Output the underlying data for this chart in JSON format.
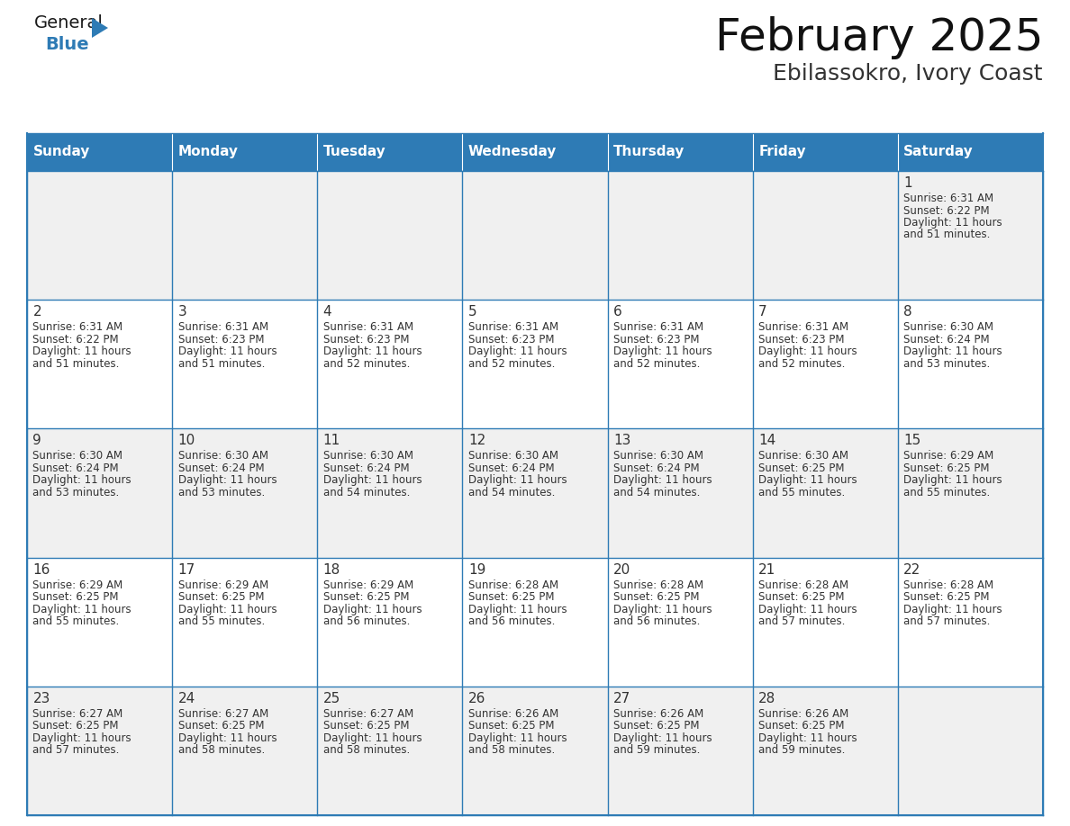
{
  "title": "February 2025",
  "subtitle": "Ebilassokro, Ivory Coast",
  "header_color": "#2E7BB5",
  "header_text_color": "#FFFFFF",
  "cell_bg_white": "#FFFFFF",
  "cell_bg_gray": "#F0F0F0",
  "border_color": "#2E7BB5",
  "border_thin_color": "#CCCCCC",
  "text_color": "#333333",
  "day_names": [
    "Sunday",
    "Monday",
    "Tuesday",
    "Wednesday",
    "Thursday",
    "Friday",
    "Saturday"
  ],
  "logo_general_color": "#1a1a1a",
  "logo_blue_color": "#2E7BB5",
  "days": [
    {
      "date": 1,
      "col": 6,
      "row": 0,
      "sunrise": "6:31 AM",
      "sunset": "6:22 PM",
      "daylight_line1": "Daylight: 11 hours",
      "daylight_line2": "and 51 minutes."
    },
    {
      "date": 2,
      "col": 0,
      "row": 1,
      "sunrise": "6:31 AM",
      "sunset": "6:22 PM",
      "daylight_line1": "Daylight: 11 hours",
      "daylight_line2": "and 51 minutes."
    },
    {
      "date": 3,
      "col": 1,
      "row": 1,
      "sunrise": "6:31 AM",
      "sunset": "6:23 PM",
      "daylight_line1": "Daylight: 11 hours",
      "daylight_line2": "and 51 minutes."
    },
    {
      "date": 4,
      "col": 2,
      "row": 1,
      "sunrise": "6:31 AM",
      "sunset": "6:23 PM",
      "daylight_line1": "Daylight: 11 hours",
      "daylight_line2": "and 52 minutes."
    },
    {
      "date": 5,
      "col": 3,
      "row": 1,
      "sunrise": "6:31 AM",
      "sunset": "6:23 PM",
      "daylight_line1": "Daylight: 11 hours",
      "daylight_line2": "and 52 minutes."
    },
    {
      "date": 6,
      "col": 4,
      "row": 1,
      "sunrise": "6:31 AM",
      "sunset": "6:23 PM",
      "daylight_line1": "Daylight: 11 hours",
      "daylight_line2": "and 52 minutes."
    },
    {
      "date": 7,
      "col": 5,
      "row": 1,
      "sunrise": "6:31 AM",
      "sunset": "6:23 PM",
      "daylight_line1": "Daylight: 11 hours",
      "daylight_line2": "and 52 minutes."
    },
    {
      "date": 8,
      "col": 6,
      "row": 1,
      "sunrise": "6:30 AM",
      "sunset": "6:24 PM",
      "daylight_line1": "Daylight: 11 hours",
      "daylight_line2": "and 53 minutes."
    },
    {
      "date": 9,
      "col": 0,
      "row": 2,
      "sunrise": "6:30 AM",
      "sunset": "6:24 PM",
      "daylight_line1": "Daylight: 11 hours",
      "daylight_line2": "and 53 minutes."
    },
    {
      "date": 10,
      "col": 1,
      "row": 2,
      "sunrise": "6:30 AM",
      "sunset": "6:24 PM",
      "daylight_line1": "Daylight: 11 hours",
      "daylight_line2": "and 53 minutes."
    },
    {
      "date": 11,
      "col": 2,
      "row": 2,
      "sunrise": "6:30 AM",
      "sunset": "6:24 PM",
      "daylight_line1": "Daylight: 11 hours",
      "daylight_line2": "and 54 minutes."
    },
    {
      "date": 12,
      "col": 3,
      "row": 2,
      "sunrise": "6:30 AM",
      "sunset": "6:24 PM",
      "daylight_line1": "Daylight: 11 hours",
      "daylight_line2": "and 54 minutes."
    },
    {
      "date": 13,
      "col": 4,
      "row": 2,
      "sunrise": "6:30 AM",
      "sunset": "6:24 PM",
      "daylight_line1": "Daylight: 11 hours",
      "daylight_line2": "and 54 minutes."
    },
    {
      "date": 14,
      "col": 5,
      "row": 2,
      "sunrise": "6:30 AM",
      "sunset": "6:25 PM",
      "daylight_line1": "Daylight: 11 hours",
      "daylight_line2": "and 55 minutes."
    },
    {
      "date": 15,
      "col": 6,
      "row": 2,
      "sunrise": "6:29 AM",
      "sunset": "6:25 PM",
      "daylight_line1": "Daylight: 11 hours",
      "daylight_line2": "and 55 minutes."
    },
    {
      "date": 16,
      "col": 0,
      "row": 3,
      "sunrise": "6:29 AM",
      "sunset": "6:25 PM",
      "daylight_line1": "Daylight: 11 hours",
      "daylight_line2": "and 55 minutes."
    },
    {
      "date": 17,
      "col": 1,
      "row": 3,
      "sunrise": "6:29 AM",
      "sunset": "6:25 PM",
      "daylight_line1": "Daylight: 11 hours",
      "daylight_line2": "and 55 minutes."
    },
    {
      "date": 18,
      "col": 2,
      "row": 3,
      "sunrise": "6:29 AM",
      "sunset": "6:25 PM",
      "daylight_line1": "Daylight: 11 hours",
      "daylight_line2": "and 56 minutes."
    },
    {
      "date": 19,
      "col": 3,
      "row": 3,
      "sunrise": "6:28 AM",
      "sunset": "6:25 PM",
      "daylight_line1": "Daylight: 11 hours",
      "daylight_line2": "and 56 minutes."
    },
    {
      "date": 20,
      "col": 4,
      "row": 3,
      "sunrise": "6:28 AM",
      "sunset": "6:25 PM",
      "daylight_line1": "Daylight: 11 hours",
      "daylight_line2": "and 56 minutes."
    },
    {
      "date": 21,
      "col": 5,
      "row": 3,
      "sunrise": "6:28 AM",
      "sunset": "6:25 PM",
      "daylight_line1": "Daylight: 11 hours",
      "daylight_line2": "and 57 minutes."
    },
    {
      "date": 22,
      "col": 6,
      "row": 3,
      "sunrise": "6:28 AM",
      "sunset": "6:25 PM",
      "daylight_line1": "Daylight: 11 hours",
      "daylight_line2": "and 57 minutes."
    },
    {
      "date": 23,
      "col": 0,
      "row": 4,
      "sunrise": "6:27 AM",
      "sunset": "6:25 PM",
      "daylight_line1": "Daylight: 11 hours",
      "daylight_line2": "and 57 minutes."
    },
    {
      "date": 24,
      "col": 1,
      "row": 4,
      "sunrise": "6:27 AM",
      "sunset": "6:25 PM",
      "daylight_line1": "Daylight: 11 hours",
      "daylight_line2": "and 58 minutes."
    },
    {
      "date": 25,
      "col": 2,
      "row": 4,
      "sunrise": "6:27 AM",
      "sunset": "6:25 PM",
      "daylight_line1": "Daylight: 11 hours",
      "daylight_line2": "and 58 minutes."
    },
    {
      "date": 26,
      "col": 3,
      "row": 4,
      "sunrise": "6:26 AM",
      "sunset": "6:25 PM",
      "daylight_line1": "Daylight: 11 hours",
      "daylight_line2": "and 58 minutes."
    },
    {
      "date": 27,
      "col": 4,
      "row": 4,
      "sunrise": "6:26 AM",
      "sunset": "6:25 PM",
      "daylight_line1": "Daylight: 11 hours",
      "daylight_line2": "and 59 minutes."
    },
    {
      "date": 28,
      "col": 5,
      "row": 4,
      "sunrise": "6:26 AM",
      "sunset": "6:25 PM",
      "daylight_line1": "Daylight: 11 hours",
      "daylight_line2": "and 59 minutes."
    }
  ],
  "num_rows": 5,
  "num_cols": 7,
  "figsize": [
    11.88,
    9.18
  ],
  "dpi": 100,
  "title_fontsize": 36,
  "subtitle_fontsize": 18,
  "header_fontsize": 11,
  "date_fontsize": 11,
  "cell_fontsize": 8.5
}
